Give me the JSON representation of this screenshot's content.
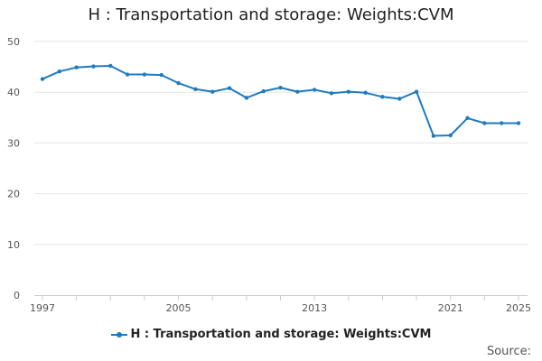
{
  "chart_data": {
    "type": "line",
    "title": "H : Transportation and storage: Weights:CVM",
    "xlabel": "",
    "ylabel": "",
    "ylim": [
      0,
      50
    ],
    "yticks": [
      0,
      10,
      20,
      30,
      40,
      50
    ],
    "xlim": [
      1997,
      2025
    ],
    "xtick_labels": [
      "1997",
      "2005",
      "2013",
      "2021",
      "2025"
    ],
    "grid": true,
    "legend_position": "bottom-center",
    "series": [
      {
        "name": "H : Transportation and storage: Weights:CVM",
        "color": "#1f7bbf",
        "x": [
          1997,
          1998,
          1999,
          2000,
          2001,
          2002,
          2003,
          2004,
          2005,
          2006,
          2007,
          2008,
          2009,
          2010,
          2011,
          2012,
          2013,
          2014,
          2015,
          2016,
          2017,
          2018,
          2019,
          2020,
          2021,
          2022,
          2023,
          2024,
          2025
        ],
        "values": [
          42.6,
          44.1,
          44.9,
          45.1,
          45.2,
          43.5,
          43.5,
          43.4,
          41.8,
          40.6,
          40.1,
          40.8,
          38.9,
          40.2,
          40.9,
          40.1,
          40.5,
          39.8,
          40.1,
          39.9,
          39.1,
          38.7,
          40.1,
          31.4,
          31.5,
          34.9,
          33.9,
          33.9,
          33.9
        ]
      }
    ]
  },
  "source_label": "Source:"
}
